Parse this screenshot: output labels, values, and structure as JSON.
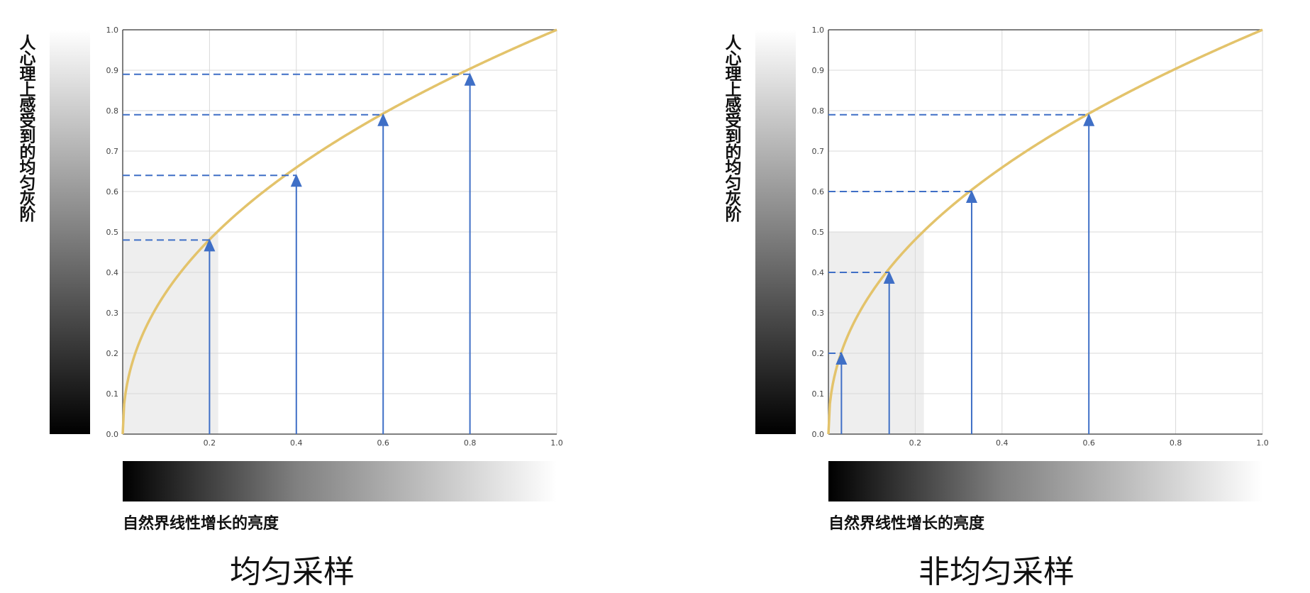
{
  "colors": {
    "curve": "#e3c36b",
    "arrow": "#3f6fc6",
    "grid": "#d8d8d8",
    "shade": "#eeeeee",
    "axis": "#555555"
  },
  "chart_data": [
    {
      "type": "line",
      "title": "均匀采样",
      "xlabel": "自然界线性增长的亮度",
      "ylabel": "人心理上感受到的均匀灰阶",
      "xlim": [
        0,
        1.0
      ],
      "ylim": [
        0,
        1.0
      ],
      "grid": true,
      "xticks": [
        "0.2",
        "0.4",
        "0.6",
        "0.8",
        "1.0"
      ],
      "yticks": [
        "0.0",
        "0.1",
        "0.2",
        "0.3",
        "0.4",
        "0.5",
        "0.6",
        "0.7",
        "0.8",
        "0.9",
        "1.0"
      ],
      "curve": {
        "function": "y = x^(1/2.2)"
      },
      "shaded_region": {
        "x": [
          0,
          0.22
        ],
        "y": [
          0,
          0.5
        ]
      },
      "samples": [
        {
          "x": 0.2,
          "y": 0.48
        },
        {
          "x": 0.4,
          "y": 0.64
        },
        {
          "x": 0.6,
          "y": 0.79
        },
        {
          "x": 0.8,
          "y": 0.89
        }
      ]
    },
    {
      "type": "line",
      "title": "非均匀采样",
      "xlabel": "自然界线性增长的亮度",
      "ylabel": "人心理上感受到的均匀灰阶",
      "xlim": [
        0,
        1.0
      ],
      "ylim": [
        0,
        1.0
      ],
      "grid": true,
      "xticks": [
        "0.2",
        "0.4",
        "0.6",
        "0.8",
        "1.0"
      ],
      "yticks": [
        "0.0",
        "0.1",
        "0.2",
        "0.3",
        "0.4",
        "0.5",
        "0.6",
        "0.7",
        "0.8",
        "0.9",
        "1.0"
      ],
      "curve": {
        "function": "y = x^(1/2.2)"
      },
      "shaded_region": {
        "x": [
          0,
          0.22
        ],
        "y": [
          0,
          0.5
        ]
      },
      "samples": [
        {
          "x": 0.03,
          "y": 0.2
        },
        {
          "x": 0.14,
          "y": 0.4
        },
        {
          "x": 0.33,
          "y": 0.6
        },
        {
          "x": 0.6,
          "y": 0.79
        }
      ]
    }
  ]
}
